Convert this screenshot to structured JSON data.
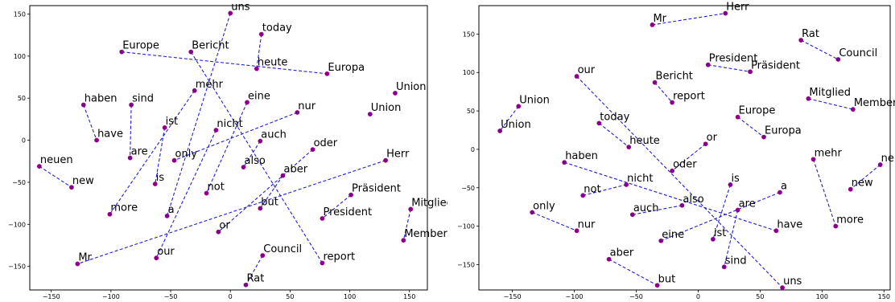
{
  "chart_data": [
    {
      "type": "scatter",
      "title": "",
      "xlabel": "",
      "ylabel": "",
      "xlim": [
        -168,
        165
      ],
      "ylim": [
        -178,
        160
      ],
      "xticks": [
        -150,
        -100,
        -50,
        0,
        50,
        100,
        150
      ],
      "yticks": [
        -150,
        -100,
        -50,
        0,
        50,
        100,
        150
      ],
      "grid": false,
      "legend": "none",
      "point_color": "#7a0099",
      "line_color": "#1f1fd6",
      "points": [
        {
          "label": "uns",
          "x": 0,
          "y": 151
        },
        {
          "label": "today",
          "x": 26,
          "y": 126
        },
        {
          "label": "Europe",
          "x": -91,
          "y": 105
        },
        {
          "label": "Bericht",
          "x": -33,
          "y": 105
        },
        {
          "label": "heute",
          "x": 22,
          "y": 85
        },
        {
          "label": "Europa",
          "x": 81,
          "y": 79
        },
        {
          "label": "haben",
          "x": -123,
          "y": 42
        },
        {
          "label": "sind",
          "x": -83,
          "y": 42
        },
        {
          "label": "mehr",
          "x": -30,
          "y": 59
        },
        {
          "label": "eine",
          "x": 14,
          "y": 45
        },
        {
          "label": "Union",
          "x": 138,
          "y": 56
        },
        {
          "label": "Union",
          "x": 117,
          "y": 31
        },
        {
          "label": "nur",
          "x": 56,
          "y": 33
        },
        {
          "label": "ist",
          "x": -55,
          "y": 15
        },
        {
          "label": "nicht",
          "x": -12,
          "y": 12
        },
        {
          "label": "have",
          "x": -112,
          "y": 0
        },
        {
          "label": "auch",
          "x": 25,
          "y": -1
        },
        {
          "label": "oder",
          "x": 69,
          "y": -11
        },
        {
          "label": "neuen",
          "x": -160,
          "y": -31
        },
        {
          "label": "are",
          "x": -84,
          "y": -21
        },
        {
          "label": "only",
          "x": -47,
          "y": -24
        },
        {
          "label": "also",
          "x": 11,
          "y": -32
        },
        {
          "label": "Herr",
          "x": 130,
          "y": -24
        },
        {
          "label": "new",
          "x": -133,
          "y": -56
        },
        {
          "label": "is",
          "x": -63,
          "y": -52
        },
        {
          "label": "aber",
          "x": 44,
          "y": -42
        },
        {
          "label": "not",
          "x": -20,
          "y": -63
        },
        {
          "label": "Präsident",
          "x": 101,
          "y": -65
        },
        {
          "label": "more",
          "x": -101,
          "y": -88
        },
        {
          "label": "a",
          "x": -53,
          "y": -90
        },
        {
          "label": "but",
          "x": 25,
          "y": -81
        },
        {
          "label": "President",
          "x": 77,
          "y": -93
        },
        {
          "label": "Mitglied",
          "x": 151,
          "y": -82
        },
        {
          "label": "or",
          "x": -10,
          "y": -109
        },
        {
          "label": "Member",
          "x": 145,
          "y": -119
        },
        {
          "label": "our",
          "x": -62,
          "y": -140
        },
        {
          "label": "Council",
          "x": 27,
          "y": -137
        },
        {
          "label": "report",
          "x": 77,
          "y": -146
        },
        {
          "label": "Mr",
          "x": -128,
          "y": -147
        },
        {
          "label": "Rat",
          "x": 13,
          "y": -172
        }
      ],
      "pairs": [
        [
          "Europe",
          "Europa"
        ],
        [
          "Bericht",
          "report"
        ],
        [
          "today",
          "heute"
        ],
        [
          "uns",
          "a"
        ],
        [
          "mehr",
          "more"
        ],
        [
          "haben",
          "have"
        ],
        [
          "sind",
          "are"
        ],
        [
          "ist",
          "is"
        ],
        [
          "eine",
          "not"
        ],
        [
          "nicht",
          "our"
        ],
        [
          "nur",
          "only"
        ],
        [
          "auch",
          "also"
        ],
        [
          "oder",
          "or"
        ],
        [
          "aber",
          "but"
        ],
        [
          "Herr",
          "Mr"
        ],
        [
          "neuen",
          "new"
        ],
        [
          "Präsident",
          "President"
        ],
        [
          "Mitglied",
          "Member"
        ],
        [
          "Council",
          "Rat"
        ]
      ]
    },
    {
      "type": "scatter",
      "title": "",
      "xlabel": "",
      "ylabel": "",
      "xlim": [
        -177,
        155
      ],
      "ylim": [
        -183,
        187
      ],
      "xticks": [
        -150,
        -100,
        -50,
        0,
        50,
        100,
        150
      ],
      "yticks": [
        -150,
        -100,
        -50,
        0,
        50,
        100,
        150
      ],
      "grid": false,
      "legend": "none",
      "point_color": "#7a0099",
      "line_color": "#1f1fd6",
      "points": [
        {
          "label": "Mr",
          "x": -37,
          "y": 162
        },
        {
          "label": "Herr",
          "x": 22,
          "y": 177
        },
        {
          "label": "Rat",
          "x": 83,
          "y": 142
        },
        {
          "label": "Council",
          "x": 113,
          "y": 117
        },
        {
          "label": "President",
          "x": 8,
          "y": 110
        },
        {
          "label": "Präsident",
          "x": 42,
          "y": 101
        },
        {
          "label": "our",
          "x": -98,
          "y": 95
        },
        {
          "label": "Bericht",
          "x": -35,
          "y": 87
        },
        {
          "label": "report",
          "x": -21,
          "y": 61
        },
        {
          "label": "Mitglied",
          "x": 89,
          "y": 66
        },
        {
          "label": "Member",
          "x": 125,
          "y": 52
        },
        {
          "label": "Union",
          "x": -145,
          "y": 56
        },
        {
          "label": "Union",
          "x": -160,
          "y": 24
        },
        {
          "label": "today",
          "x": -80,
          "y": 34
        },
        {
          "label": "Europe",
          "x": 32,
          "y": 42
        },
        {
          "label": "heute",
          "x": -56,
          "y": 3
        },
        {
          "label": "Europa",
          "x": 53,
          "y": 16
        },
        {
          "label": "or",
          "x": 6,
          "y": 7
        },
        {
          "label": "haben",
          "x": -108,
          "y": -17
        },
        {
          "label": "oder",
          "x": -21,
          "y": -28
        },
        {
          "label": "mehr",
          "x": 93,
          "y": -13
        },
        {
          "label": "neuen",
          "x": 147,
          "y": -20
        },
        {
          "label": "is",
          "x": 26,
          "y": -46
        },
        {
          "label": "nicht",
          "x": -58,
          "y": -46
        },
        {
          "label": "a",
          "x": 66,
          "y": -56
        },
        {
          "label": "not",
          "x": -93,
          "y": -60
        },
        {
          "label": "new",
          "x": 123,
          "y": -52
        },
        {
          "label": "also",
          "x": -13,
          "y": -73
        },
        {
          "label": "are",
          "x": 32,
          "y": -79
        },
        {
          "label": "auch",
          "x": -53,
          "y": -85
        },
        {
          "label": "only",
          "x": -134,
          "y": -82
        },
        {
          "label": "nur",
          "x": -98,
          "y": -106
        },
        {
          "label": "have",
          "x": 63,
          "y": -106
        },
        {
          "label": "more",
          "x": 111,
          "y": -100
        },
        {
          "label": "eine",
          "x": -30,
          "y": -119
        },
        {
          "label": "ist",
          "x": 12,
          "y": -117
        },
        {
          "label": "aber",
          "x": -72,
          "y": -143
        },
        {
          "label": "sind",
          "x": 21,
          "y": -153
        },
        {
          "label": "but",
          "x": -33,
          "y": -177
        },
        {
          "label": "uns",
          "x": 68,
          "y": -180
        }
      ],
      "pairs": [
        [
          "Mr",
          "Herr"
        ],
        [
          "Rat",
          "Council"
        ],
        [
          "President",
          "Präsident"
        ],
        [
          "Bericht",
          "report"
        ],
        [
          "Mitglied",
          "Member"
        ],
        [
          "Union",
          "Union"
        ],
        [
          "Europe",
          "Europa"
        ],
        [
          "today",
          "heute"
        ],
        [
          "or",
          "oder"
        ],
        [
          "our",
          "uns"
        ],
        [
          "haben",
          "have"
        ],
        [
          "mehr",
          "more"
        ],
        [
          "neuen",
          "new"
        ],
        [
          "is",
          "ist"
        ],
        [
          "a",
          "eine"
        ],
        [
          "not",
          "nicht"
        ],
        [
          "also",
          "auch"
        ],
        [
          "are",
          "sind"
        ],
        [
          "only",
          "nur"
        ],
        [
          "aber",
          "but"
        ]
      ]
    }
  ]
}
